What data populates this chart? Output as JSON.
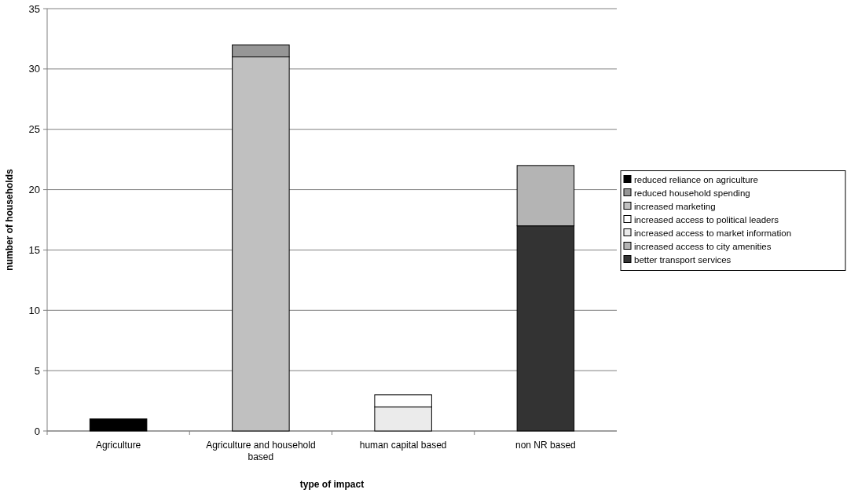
{
  "chart_data": {
    "type": "bar",
    "stacked": true,
    "xlabel": "type  of impact",
    "ylabel": "number of households",
    "categories": [
      "Agriculture",
      "Agriculture and household based",
      "human capital based",
      "non NR based"
    ],
    "series": [
      {
        "name": "better transport services",
        "color": "#333333",
        "values": [
          null,
          null,
          null,
          17
        ]
      },
      {
        "name": "increased access to city amenities",
        "color": "#b4b4b4",
        "values": [
          null,
          null,
          null,
          5
        ]
      },
      {
        "name": "increased access to market information",
        "color": "#ebebeb",
        "values": [
          null,
          null,
          2,
          null
        ]
      },
      {
        "name": "increased access to political leaders",
        "color": "#ffffff",
        "values": [
          null,
          null,
          1,
          null
        ]
      },
      {
        "name": "increased marketing",
        "color": "#c0c0c0",
        "values": [
          null,
          31,
          null,
          null
        ]
      },
      {
        "name": "reduced household spending",
        "color": "#969696",
        "values": [
          null,
          1,
          null,
          null
        ]
      },
      {
        "name": "reduced reliance on agriculture",
        "color": "#000000",
        "values": [
          1,
          null,
          null,
          null
        ]
      }
    ],
    "ylim": [
      0,
      35
    ],
    "yticks": [
      0,
      5,
      10,
      15,
      20,
      25,
      30,
      35
    ],
    "grid": "y",
    "legend": "right"
  }
}
